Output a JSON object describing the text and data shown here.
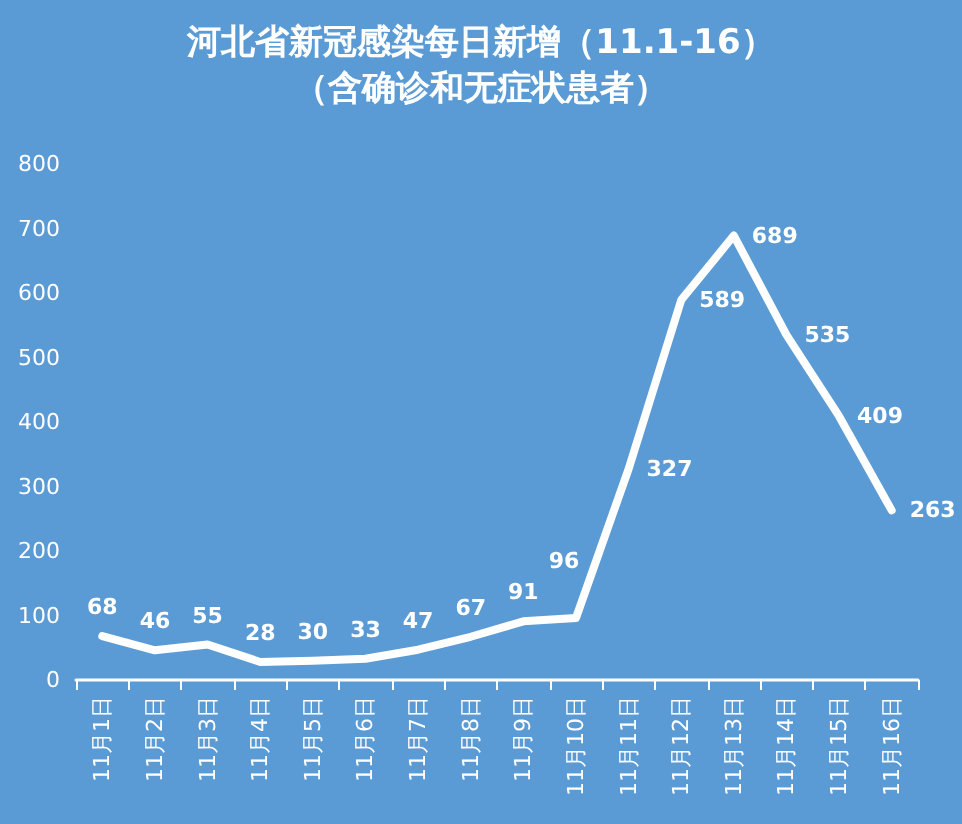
{
  "chart_data": {
    "type": "line",
    "title": "河北省新冠感染每日新增（11.1-16）",
    "subtitle": "（含确诊和无症状患者）",
    "categories": [
      "11月1日",
      "11月2日",
      "11月3日",
      "11月4日",
      "11月5日",
      "11月6日",
      "11月7日",
      "11月8日",
      "11月9日",
      "11月10日",
      "11月11日",
      "11月12日",
      "11月13日",
      "11月14日",
      "11月15日",
      "11月16日"
    ],
    "series": [
      {
        "color": "#ffffff",
        "values": [
          68,
          46,
          55,
          28,
          30,
          33,
          47,
          67,
          91,
          96,
          327,
          589,
          689,
          535,
          409,
          263
        ]
      }
    ],
    "ylim": [
      0,
      800
    ],
    "yticks": [
      0,
      100,
      200,
      300,
      400,
      500,
      600,
      700,
      800
    ],
    "grid": false,
    "marker": "none",
    "line_style": "solid",
    "data_labels": true
  }
}
